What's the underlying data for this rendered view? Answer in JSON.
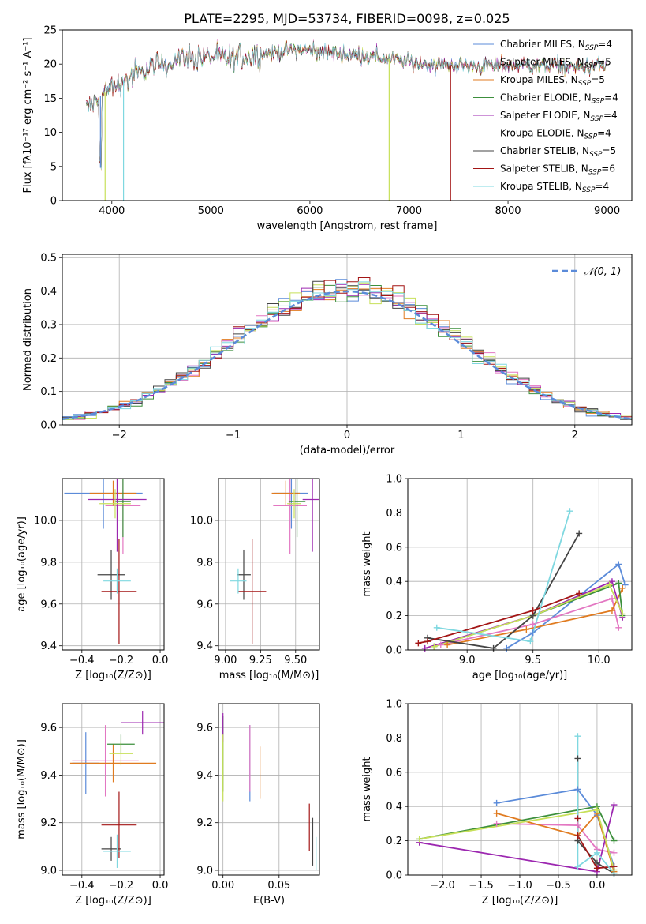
{
  "figure": {
    "title": "PLATE=2295, MJD=53734, FIBERID=0098, z=0.025"
  },
  "colors": {
    "Chabrier MILES": "#5b8bd9",
    "Salpeter MILES": "#e377c2",
    "Kroupa MILES": "#e07b20",
    "Chabrier ELODIE": "#3c8f3c",
    "Salpeter ELODIE": "#9c27b0",
    "Kroupa ELODIE": "#c7e05a",
    "Chabrier STELIB": "#444444",
    "Salpeter STELIB": "#a31515",
    "Kroupa STELIB": "#7fd8e0"
  },
  "chart_data": [
    {
      "id": "spectrum",
      "type": "line",
      "xlabel": "wavelength [Angstrom, rest frame]",
      "ylabel": "Flux [fλ10⁻¹⁷ erg cm⁻² s⁻¹ A⁻¹]",
      "xlim": [
        3500,
        9250
      ],
      "ylim": [
        0,
        25
      ],
      "xticks": [
        4000,
        5000,
        6000,
        7000,
        8000,
        9000
      ],
      "yticks": [
        0,
        5,
        10,
        15,
        20,
        25
      ],
      "grid": false,
      "legend": "top-right",
      "series": [
        {
          "name": "Chabrier MILES, N_SSP=4",
          "color_key": "Chabrier MILES"
        },
        {
          "name": "Salpeter MILES, N_SSP=5",
          "color_key": "Salpeter MILES"
        },
        {
          "name": "Kroupa MILES, N_SSP=5",
          "color_key": "Kroupa MILES"
        },
        {
          "name": "Chabrier ELODIE, N_SSP=4",
          "color_key": "Chabrier ELODIE"
        },
        {
          "name": "Salpeter ELODIE, N_SSP=4",
          "color_key": "Salpeter ELODIE"
        },
        {
          "name": "Kroupa ELODIE, N_SSP=4",
          "color_key": "Kroupa ELODIE"
        },
        {
          "name": "Chabrier STELIB, N_SSP=5",
          "color_key": "Chabrier STELIB"
        },
        {
          "name": "Salpeter STELIB, N_SSP=6",
          "color_key": "Salpeter STELIB"
        },
        {
          "name": "Kroupa STELIB, N_SSP=4",
          "color_key": "Kroupa STELIB"
        }
      ],
      "continuum": {
        "x": [
          3750,
          3900,
          4000,
          4100,
          4200,
          4400,
          4600,
          4800,
          5000,
          5200,
          5500,
          5800,
          6000,
          6300,
          6600,
          6900,
          7200,
          7500,
          7800,
          8100,
          8400,
          8700,
          9000
        ],
        "y": [
          13.5,
          15.5,
          16.5,
          17.5,
          18,
          19.5,
          20.5,
          21,
          21,
          20.8,
          21.5,
          22,
          22,
          21.5,
          21.2,
          20.5,
          20,
          19.8,
          19.7,
          19.9,
          19.8,
          19.5,
          19.8
        ]
      },
      "features": [
        {
          "x": 3885,
          "y": 4.8
        },
        {
          "x": 3932,
          "y": 0
        },
        {
          "x": 4118,
          "y": 0
        },
        {
          "x": 6800,
          "y": 0
        },
        {
          "x": 7420,
          "y": 0
        }
      ]
    },
    {
      "id": "residuals",
      "type": "line",
      "xlabel": "(data-model)/error",
      "ylabel": "Normed distribution",
      "xlim": [
        -2.5,
        2.5
      ],
      "ylim": [
        0,
        0.51
      ],
      "xticks": [
        -2,
        -1,
        0,
        1,
        2
      ],
      "yticks": [
        0.0,
        0.1,
        0.2,
        0.3,
        0.4,
        0.5
      ],
      "grid": true,
      "legend": "top-right",
      "gaussian": {
        "name": "𝒩(0, 1)",
        "mu": 0,
        "sigma": 1,
        "color": "#5b8bd9"
      },
      "histogram": {
        "bin_width": 0.1,
        "range": [
          -2.5,
          2.5
        ]
      }
    },
    {
      "id": "age_vs_Z",
      "type": "scatter",
      "xlabel": "Z [log₁₀(Z/Z⊙)]",
      "ylabel": "age  [log₁₀(age/yr)]",
      "xlim": [
        -0.5,
        0.02
      ],
      "ylim": [
        9.38,
        10.2
      ],
      "xticks": [
        -0.4,
        -0.2,
        0.0
      ],
      "yticks": [
        9.4,
        9.6,
        9.8,
        10.0
      ],
      "grid": true,
      "points": [
        {
          "key": "Chabrier MILES",
          "x": -0.29,
          "xerr": 0.2,
          "y": 10.13,
          "yerr": 0.17
        },
        {
          "key": "Salpeter MILES",
          "x": -0.19,
          "xerr": 0.09,
          "y": 10.07,
          "yerr": 0.23
        },
        {
          "key": "Kroupa MILES",
          "x": -0.24,
          "xerr": 0.12,
          "y": 10.13,
          "yerr": 0.06
        },
        {
          "key": "Chabrier ELODIE",
          "x": -0.19,
          "xerr": 0.04,
          "y": 10.09,
          "yerr": 0.17
        },
        {
          "key": "Salpeter ELODIE",
          "x": -0.22,
          "xerr": 0.15,
          "y": 10.1,
          "yerr": 0.25
        },
        {
          "key": "Kroupa ELODIE",
          "x": -0.23,
          "xerr": 0.08,
          "y": 10.08,
          "yerr": 0.07
        },
        {
          "key": "Chabrier STELIB",
          "x": -0.25,
          "xerr": 0.07,
          "y": 9.74,
          "yerr": 0.12
        },
        {
          "key": "Salpeter STELIB",
          "x": -0.21,
          "xerr": 0.09,
          "y": 9.66,
          "yerr": 0.25
        },
        {
          "key": "Kroupa STELIB",
          "x": -0.22,
          "xerr": 0.07,
          "y": 9.71,
          "yerr": 0.06
        }
      ]
    },
    {
      "id": "age_vs_mass",
      "type": "scatter",
      "xlabel": "mass [log₁₀(M/M⊙)]",
      "ylabel": "",
      "xlim": [
        8.95,
        9.67
      ],
      "ylim": [
        9.38,
        10.2
      ],
      "xticks": [
        9.0,
        9.25,
        9.5
      ],
      "yticks": [
        9.4,
        9.6,
        9.8,
        10.0
      ],
      "grid": true,
      "points": [
        {
          "key": "Chabrier MILES",
          "x": 9.47,
          "xerr": 0.12,
          "y": 10.13,
          "yerr": 0.17
        },
        {
          "key": "Salpeter MILES",
          "x": 9.46,
          "xerr": 0.12,
          "y": 10.07,
          "yerr": 0.23
        },
        {
          "key": "Kroupa MILES",
          "x": 9.43,
          "xerr": 0.1,
          "y": 10.13,
          "yerr": 0.06
        },
        {
          "key": "Chabrier ELODIE",
          "x": 9.51,
          "xerr": 0.06,
          "y": 10.09,
          "yerr": 0.17
        },
        {
          "key": "Salpeter ELODIE",
          "x": 9.62,
          "xerr": 0.07,
          "y": 10.1,
          "yerr": 0.25
        },
        {
          "key": "Kroupa ELODIE",
          "x": 9.49,
          "xerr": 0.05,
          "y": 10.08,
          "yerr": 0.07
        },
        {
          "key": "Chabrier STELIB",
          "x": 9.13,
          "xerr": 0.05,
          "y": 9.74,
          "yerr": 0.12
        },
        {
          "key": "Salpeter STELIB",
          "x": 9.19,
          "xerr": 0.1,
          "y": 9.66,
          "yerr": 0.25
        },
        {
          "key": "Kroupa STELIB",
          "x": 9.09,
          "xerr": 0.06,
          "y": 9.71,
          "yerr": 0.06
        }
      ]
    },
    {
      "id": "weight_vs_age",
      "type": "line",
      "xlabel": "age  [log₁₀(age/yr)]",
      "ylabel": "mass weight",
      "xlim": [
        8.55,
        10.25
      ],
      "ylim": [
        0,
        1.0
      ],
      "xticks": [
        9.0,
        9.5,
        10.0
      ],
      "yticks": [
        0.0,
        0.2,
        0.4,
        0.6,
        0.8,
        1.0
      ],
      "grid": true,
      "series": [
        {
          "key": "Chabrier MILES",
          "x": [
            9.3,
            9.5,
            10.15,
            10.2
          ],
          "y": [
            0.01,
            0.1,
            0.5,
            0.38
          ]
        },
        {
          "key": "Salpeter MILES",
          "x": [
            8.8,
            9.5,
            10.1,
            10.15
          ],
          "y": [
            0.03,
            0.15,
            0.3,
            0.13
          ]
        },
        {
          "key": "Kroupa MILES",
          "x": [
            8.85,
            9.45,
            10.1,
            10.18
          ],
          "y": [
            0.03,
            0.12,
            0.23,
            0.36
          ]
        },
        {
          "key": "Chabrier ELODIE",
          "x": [
            8.75,
            9.5,
            10.15,
            10.18
          ],
          "y": [
            0.02,
            0.2,
            0.39,
            0.2
          ]
        },
        {
          "key": "Salpeter ELODIE",
          "x": [
            8.68,
            9.5,
            10.1,
            10.18
          ],
          "y": [
            0.01,
            0.2,
            0.4,
            0.19
          ]
        },
        {
          "key": "Kroupa ELODIE",
          "x": [
            8.75,
            9.5,
            10.08,
            10.18
          ],
          "y": [
            0.02,
            0.2,
            0.38,
            0.21
          ]
        },
        {
          "key": "Chabrier STELIB",
          "x": [
            8.7,
            9.2,
            9.5,
            9.85
          ],
          "y": [
            0.07,
            0.01,
            0.2,
            0.68
          ]
        },
        {
          "key": "Salpeter STELIB",
          "x": [
            8.63,
            8.7,
            9.5,
            9.85
          ],
          "y": [
            0.04,
            0.05,
            0.23,
            0.33
          ]
        },
        {
          "key": "Kroupa STELIB",
          "x": [
            8.77,
            9.48,
            9.78
          ],
          "y": [
            0.13,
            0.05,
            0.81
          ]
        }
      ]
    },
    {
      "id": "mass_vs_Z",
      "type": "scatter",
      "xlabel": "Z [log₁₀(Z/Z⊙)]",
      "ylabel": "mass [log₁₀(M/M⊙)]",
      "xlim": [
        -0.5,
        0.02
      ],
      "ylim": [
        8.98,
        9.7
      ],
      "xticks": [
        -0.4,
        -0.2,
        0.0
      ],
      "yticks": [
        9.0,
        9.2,
        9.4,
        9.6
      ],
      "grid": true,
      "points": [
        {
          "key": "Chabrier MILES",
          "x": -0.38,
          "xerr": 0.07,
          "y": 9.45,
          "yerr": 0.13
        },
        {
          "key": "Salpeter MILES",
          "x": -0.28,
          "xerr": 0.17,
          "y": 9.46,
          "yerr": 0.15
        },
        {
          "key": "Kroupa MILES",
          "x": -0.24,
          "xerr": 0.22,
          "y": 9.45,
          "yerr": 0.08
        },
        {
          "key": "Chabrier ELODIE",
          "x": -0.2,
          "xerr": 0.07,
          "y": 9.53,
          "yerr": 0.04
        },
        {
          "key": "Salpeter ELODIE",
          "x": -0.09,
          "xerr": 0.11,
          "y": 9.62,
          "yerr": 0.05
        },
        {
          "key": "Kroupa ELODIE",
          "x": -0.2,
          "xerr": 0.06,
          "y": 9.49,
          "yerr": 0.05
        },
        {
          "key": "Chabrier STELIB",
          "x": -0.25,
          "xerr": 0.05,
          "y": 9.09,
          "yerr": 0.05
        },
        {
          "key": "Salpeter STELIB",
          "x": -0.21,
          "xerr": 0.09,
          "y": 9.19,
          "yerr": 0.14
        },
        {
          "key": "Kroupa STELIB",
          "x": -0.22,
          "xerr": 0.07,
          "y": 9.08,
          "yerr": 0.07
        }
      ]
    },
    {
      "id": "mass_vs_ebv",
      "type": "scatter",
      "xlabel": "E(B-V)",
      "ylabel": "",
      "xlim": [
        -0.004,
        0.086
      ],
      "ylim": [
        8.98,
        9.7
      ],
      "xticks": [
        0.0,
        0.05
      ],
      "yticks": [
        9.0,
        9.2,
        9.4,
        9.6
      ],
      "grid": true,
      "points": [
        {
          "key": "Chabrier MILES",
          "x": 0.024,
          "y": 9.45,
          "yerr": 0.16
        },
        {
          "key": "Salpeter MILES",
          "x": 0.024,
          "y": 9.47,
          "yerr": 0.14
        },
        {
          "key": "Kroupa MILES",
          "x": 0.033,
          "y": 9.41,
          "yerr": 0.11
        },
        {
          "key": "Chabrier ELODIE",
          "x": 0.0,
          "y": 9.49,
          "yerr": 0.16
        },
        {
          "key": "Salpeter ELODIE",
          "x": 0.0,
          "y": 9.6,
          "yerr": 0.06
        },
        {
          "key": "Kroupa ELODIE",
          "x": 0.0,
          "y": 9.43,
          "yerr": 0.14
        },
        {
          "key": "Chabrier STELIB",
          "x": 0.08,
          "y": 9.12,
          "yerr": 0.1
        },
        {
          "key": "Salpeter STELIB",
          "x": 0.077,
          "y": 9.18,
          "yerr": 0.1
        },
        {
          "key": "Kroupa STELIB",
          "x": 0.083,
          "y": 9.07,
          "yerr": 0.07
        }
      ]
    },
    {
      "id": "weight_vs_Z",
      "type": "line",
      "xlabel": "Z [log₁₀(Z/Z⊙)]",
      "ylabel": "mass weight",
      "xlim": [
        -2.45,
        0.45
      ],
      "ylim": [
        0,
        1.0
      ],
      "xticks": [
        -2.0,
        -1.5,
        -1.0,
        -0.5,
        0.0
      ],
      "yticks": [
        0.0,
        0.2,
        0.4,
        0.6,
        0.8,
        1.0
      ],
      "grid": true,
      "series": [
        {
          "key": "Chabrier MILES",
          "x": [
            -1.3,
            -0.25,
            0.0,
            0.22
          ],
          "y": [
            0.42,
            0.5,
            0.35,
            0.05
          ]
        },
        {
          "key": "Salpeter MILES",
          "x": [
            -1.3,
            -0.25,
            0.0,
            0.22
          ],
          "y": [
            0.3,
            0.29,
            0.15,
            0.13
          ]
        },
        {
          "key": "Kroupa MILES",
          "x": [
            -1.3,
            -0.25,
            0.0,
            0.22
          ],
          "y": [
            0.36,
            0.23,
            0.36,
            0.02
          ]
        },
        {
          "key": "Chabrier ELODIE",
          "x": [
            -2.3,
            0.0,
            0.22
          ],
          "y": [
            0.21,
            0.4,
            0.2
          ]
        },
        {
          "key": "Salpeter ELODIE",
          "x": [
            -2.3,
            0.0,
            0.22
          ],
          "y": [
            0.19,
            0.02,
            0.41
          ]
        },
        {
          "key": "Kroupa ELODIE",
          "x": [
            -2.3,
            0.0,
            0.22
          ],
          "y": [
            0.21,
            0.38,
            0.03
          ]
        },
        {
          "key": "Chabrier STELIB",
          "x": [
            -0.25,
            -0.25,
            0.0,
            0.22
          ],
          "y": [
            0.68,
            0.2,
            0.07,
            0.01
          ]
        },
        {
          "key": "Salpeter STELIB",
          "x": [
            -0.25,
            -0.25,
            0.0,
            0.22
          ],
          "y": [
            0.33,
            0.23,
            0.04,
            0.05
          ]
        },
        {
          "key": "Kroupa STELIB",
          "x": [
            -0.25,
            -0.25,
            0.0,
            0.22
          ],
          "y": [
            0.81,
            0.05,
            0.13,
            0.01
          ]
        }
      ]
    }
  ]
}
